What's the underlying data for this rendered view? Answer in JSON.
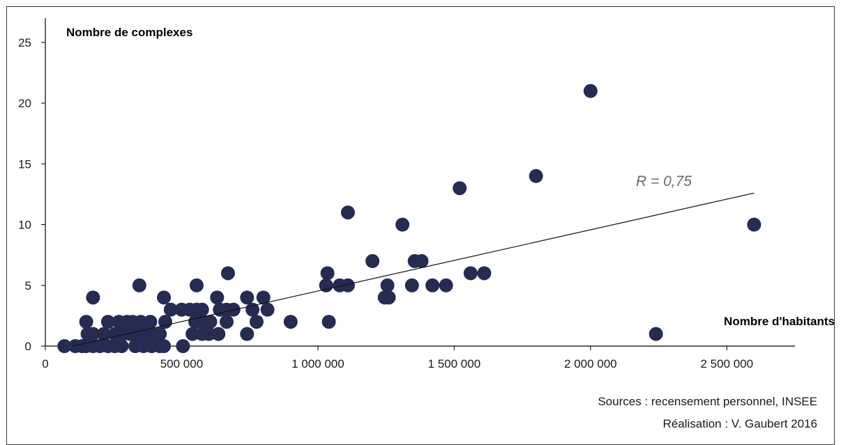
{
  "chart_data": {
    "type": "scatter",
    "ylabel": "Nombre de complexes",
    "xlabel": "Nombre d'habitants",
    "xlim": [
      0,
      2750000
    ],
    "ylim": [
      0,
      27
    ],
    "x_ticks": [
      0,
      500000,
      1000000,
      1500000,
      2000000,
      2500000
    ],
    "x_tick_labels": [
      "0",
      "500 000",
      "1 000 000",
      "1 500 000",
      "2 000 000",
      "2 500 000"
    ],
    "y_ticks": [
      0,
      5,
      10,
      15,
      20,
      25
    ],
    "y_tick_labels": [
      "0",
      "5",
      "10",
      "15",
      "20",
      "25"
    ],
    "grid": false,
    "point_color": "#262b52",
    "trendline": {
      "x": [
        100000,
        2600000
      ],
      "y": [
        0,
        12.6
      ],
      "label": "R = 0,75"
    },
    "points": [
      {
        "x": 70000,
        "y": 0
      },
      {
        "x": 110000,
        "y": 0
      },
      {
        "x": 135000,
        "y": 0
      },
      {
        "x": 150000,
        "y": 0
      },
      {
        "x": 175000,
        "y": 0
      },
      {
        "x": 200000,
        "y": 0
      },
      {
        "x": 230000,
        "y": 0
      },
      {
        "x": 255000,
        "y": 0
      },
      {
        "x": 280000,
        "y": 0
      },
      {
        "x": 330000,
        "y": 0
      },
      {
        "x": 360000,
        "y": 0
      },
      {
        "x": 390000,
        "y": 0
      },
      {
        "x": 420000,
        "y": 0
      },
      {
        "x": 435000,
        "y": 0
      },
      {
        "x": 505000,
        "y": 0
      },
      {
        "x": 155000,
        "y": 1
      },
      {
        "x": 175000,
        "y": 1
      },
      {
        "x": 215000,
        "y": 1
      },
      {
        "x": 255000,
        "y": 1
      },
      {
        "x": 285000,
        "y": 1
      },
      {
        "x": 310000,
        "y": 1
      },
      {
        "x": 340000,
        "y": 1
      },
      {
        "x": 370000,
        "y": 1
      },
      {
        "x": 395000,
        "y": 1
      },
      {
        "x": 420000,
        "y": 1
      },
      {
        "x": 540000,
        "y": 1
      },
      {
        "x": 575000,
        "y": 1
      },
      {
        "x": 600000,
        "y": 1
      },
      {
        "x": 635000,
        "y": 1
      },
      {
        "x": 740000,
        "y": 1
      },
      {
        "x": 2240000,
        "y": 1
      },
      {
        "x": 150000,
        "y": 2
      },
      {
        "x": 230000,
        "y": 2
      },
      {
        "x": 270000,
        "y": 2
      },
      {
        "x": 300000,
        "y": 2
      },
      {
        "x": 320000,
        "y": 2
      },
      {
        "x": 350000,
        "y": 2
      },
      {
        "x": 385000,
        "y": 2
      },
      {
        "x": 440000,
        "y": 2
      },
      {
        "x": 550000,
        "y": 2
      },
      {
        "x": 580000,
        "y": 2
      },
      {
        "x": 605000,
        "y": 2
      },
      {
        "x": 665000,
        "y": 2
      },
      {
        "x": 775000,
        "y": 2
      },
      {
        "x": 900000,
        "y": 2
      },
      {
        "x": 1040000,
        "y": 2
      },
      {
        "x": 460000,
        "y": 3
      },
      {
        "x": 500000,
        "y": 3
      },
      {
        "x": 530000,
        "y": 3
      },
      {
        "x": 555000,
        "y": 3
      },
      {
        "x": 575000,
        "y": 3
      },
      {
        "x": 640000,
        "y": 3
      },
      {
        "x": 665000,
        "y": 3
      },
      {
        "x": 690000,
        "y": 3
      },
      {
        "x": 760000,
        "y": 3
      },
      {
        "x": 815000,
        "y": 3
      },
      {
        "x": 175000,
        "y": 4
      },
      {
        "x": 435000,
        "y": 4
      },
      {
        "x": 630000,
        "y": 4
      },
      {
        "x": 740000,
        "y": 4
      },
      {
        "x": 800000,
        "y": 4
      },
      {
        "x": 1245000,
        "y": 4
      },
      {
        "x": 1260000,
        "y": 4
      },
      {
        "x": 345000,
        "y": 5
      },
      {
        "x": 555000,
        "y": 5
      },
      {
        "x": 1030000,
        "y": 5
      },
      {
        "x": 1080000,
        "y": 5
      },
      {
        "x": 1110000,
        "y": 5
      },
      {
        "x": 1255000,
        "y": 5
      },
      {
        "x": 1345000,
        "y": 5
      },
      {
        "x": 1420000,
        "y": 5
      },
      {
        "x": 1470000,
        "y": 5
      },
      {
        "x": 670000,
        "y": 6
      },
      {
        "x": 1035000,
        "y": 6
      },
      {
        "x": 1560000,
        "y": 6
      },
      {
        "x": 1610000,
        "y": 6
      },
      {
        "x": 1200000,
        "y": 7
      },
      {
        "x": 1355000,
        "y": 7
      },
      {
        "x": 1380000,
        "y": 7
      },
      {
        "x": 1310000,
        "y": 10
      },
      {
        "x": 2600000,
        "y": 10
      },
      {
        "x": 1110000,
        "y": 11
      },
      {
        "x": 1520000,
        "y": 13
      },
      {
        "x": 1800000,
        "y": 14
      },
      {
        "x": 2000000,
        "y": 21
      }
    ]
  },
  "notes": {
    "sources": "Sources : recensement personnel, INSEE",
    "realisation": "Réalisation : V. Gaubert 2016"
  }
}
